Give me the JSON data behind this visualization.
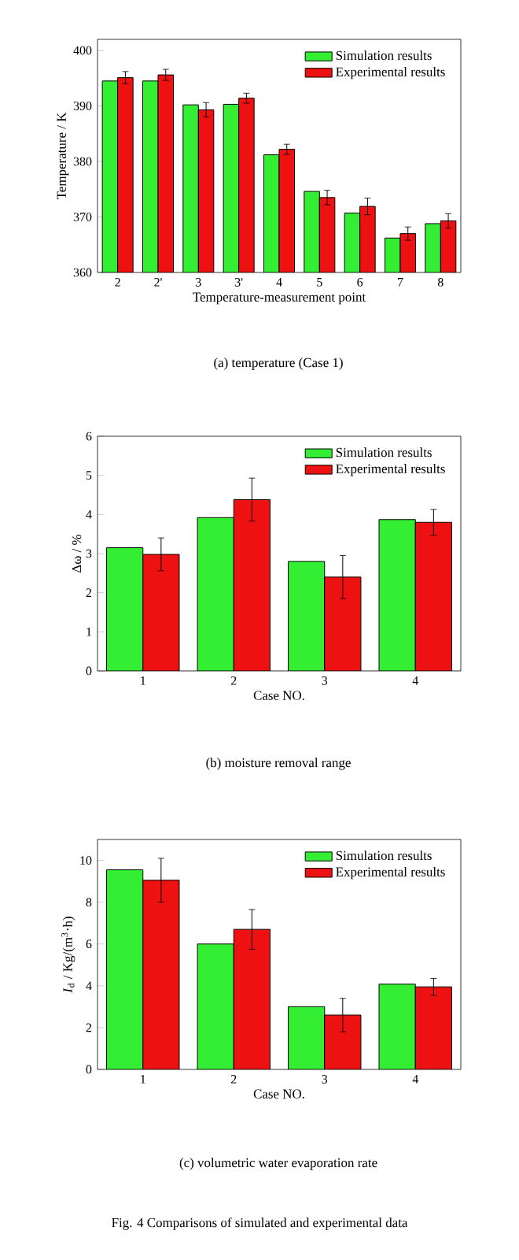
{
  "chart_data": [
    {
      "type": "bar",
      "categories": [
        "2",
        "2'",
        "3",
        "3'",
        "4",
        "5",
        "6",
        "7",
        "8"
      ],
      "xlabel": "Temperature-measurement point",
      "ylabel": "Temperature / K",
      "ylim": [
        360,
        402
      ],
      "yticks": [
        360,
        370,
        380,
        390,
        400
      ],
      "legend": "top right",
      "series": [
        {
          "name": "Simulation results",
          "color": "#33ee33",
          "values": [
            394.5,
            394.5,
            390.2,
            390.3,
            381.2,
            374.6,
            370.7,
            366.2,
            368.8
          ]
        },
        {
          "name": "Experimental results",
          "color": "#ee1111",
          "values": [
            395.1,
            395.6,
            389.3,
            391.4,
            382.2,
            373.5,
            371.9,
            367.0,
            369.3
          ],
          "errors": [
            1.1,
            1.0,
            1.3,
            0.9,
            0.9,
            1.3,
            1.5,
            1.2,
            1.3
          ]
        }
      ],
      "annotations": [
        "(a) temperature (Case 1)"
      ]
    },
    {
      "type": "bar",
      "categories": [
        "1",
        "2",
        "3",
        "4"
      ],
      "xlabel": "Case NO.",
      "ylabel": "Δω / %",
      "ylim": [
        0,
        6
      ],
      "yticks": [
        0,
        1,
        2,
        3,
        4,
        5,
        6
      ],
      "legend": "top right",
      "series": [
        {
          "name": "Simulation results",
          "color": "#33ee33",
          "values": [
            3.15,
            3.92,
            2.8,
            3.87
          ]
        },
        {
          "name": "Experimental results",
          "color": "#ee1111",
          "values": [
            2.98,
            4.38,
            2.4,
            3.8
          ],
          "errors": [
            0.42,
            0.55,
            0.55,
            0.33
          ]
        }
      ],
      "annotations": [
        "(b) moisture removal range"
      ]
    },
    {
      "type": "bar",
      "categories": [
        "1",
        "2",
        "3",
        "4"
      ],
      "xlabel": "Case NO.",
      "ylabel": "*I*$_{d}$ / Kg/(m$^{3}$·h)",
      "ylim": [
        0,
        11
      ],
      "yticks": [
        0,
        2,
        4,
        6,
        8,
        10
      ],
      "legend": "top right",
      "series": [
        {
          "name": "Simulation results",
          "color": "#33ee33",
          "values": [
            9.55,
            6.0,
            3.0,
            4.08
          ]
        },
        {
          "name": "Experimental results",
          "color": "#ee1111",
          "values": [
            9.05,
            6.7,
            2.6,
            3.95
          ],
          "errors": [
            1.05,
            0.95,
            0.8,
            0.4
          ]
        }
      ],
      "annotations": [
        "(c) volumetric water evaporation rate",
        "Fig. 4   Comparisons of simulated and experimental data"
      ]
    }
  ]
}
